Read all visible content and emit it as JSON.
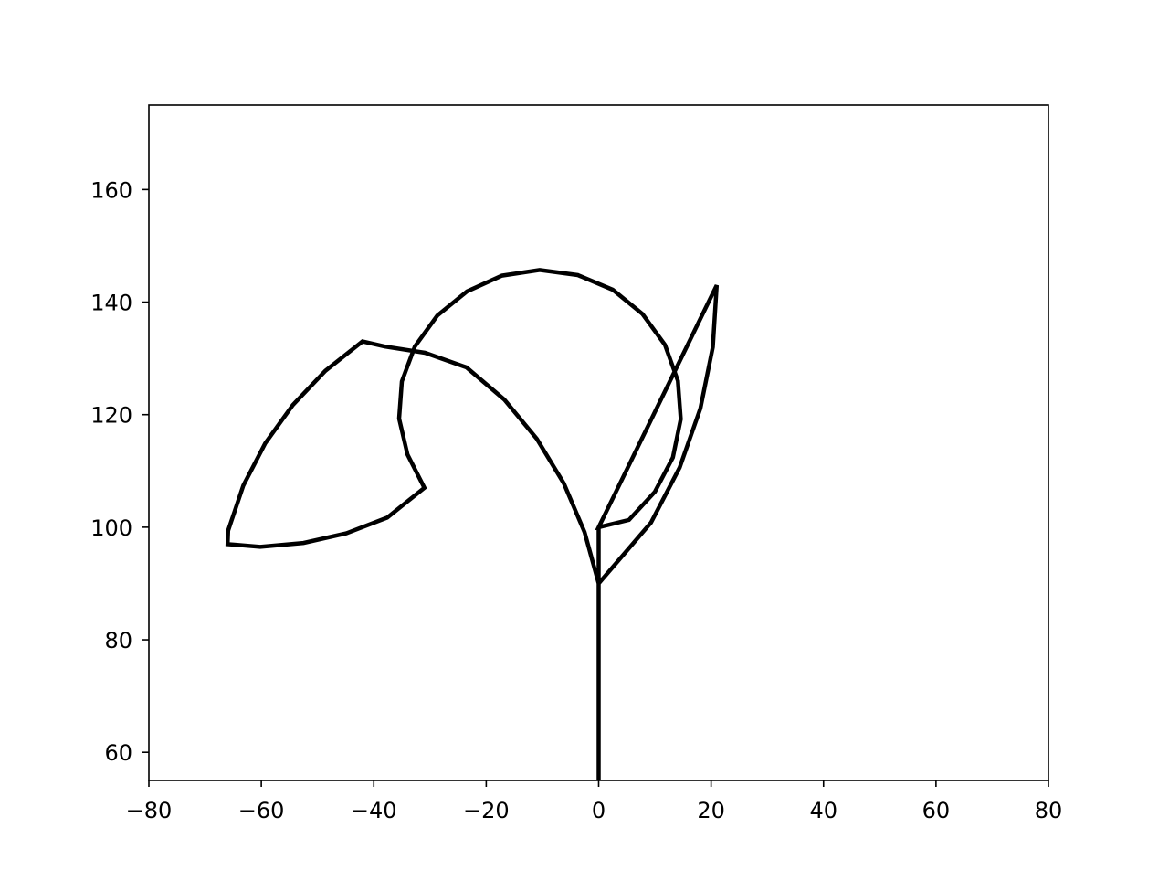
{
  "chart_data": {
    "type": "line",
    "title": "",
    "xlabel": "",
    "ylabel": "",
    "xlim": [
      -80,
      80
    ],
    "ylim": [
      55,
      175
    ],
    "x_ticks": [
      -80,
      -60,
      -40,
      -20,
      0,
      20,
      40,
      60,
      80
    ],
    "x_tick_labels": [
      "−80",
      "−60",
      "−40",
      "−20",
      "0",
      "20",
      "40",
      "60",
      "80"
    ],
    "y_ticks": [
      60,
      80,
      100,
      120,
      140,
      160
    ],
    "y_tick_labels": [
      "60",
      "80",
      "100",
      "120",
      "140",
      "160"
    ],
    "grid": false,
    "legend": "none",
    "line_color": "#000000",
    "series": [
      {
        "values": [
          [
            0,
            55
          ],
          [
            0,
            90
          ],
          [
            -2.5,
            99.1
          ],
          [
            -6.2,
            107.8
          ],
          [
            -11.0,
            115.7
          ],
          [
            -16.8,
            122.7
          ],
          [
            -23.5,
            128.4
          ],
          [
            -30.9,
            131.0
          ],
          [
            -38.0,
            132.1
          ],
          [
            -42.0,
            133.0
          ],
          [
            -48.6,
            127.8
          ],
          [
            -54.4,
            121.7
          ],
          [
            -59.3,
            114.9
          ],
          [
            -63.2,
            107.4
          ],
          [
            -65.9,
            99.4
          ],
          [
            -66.0,
            97.0
          ],
          [
            -60.2,
            96.5
          ],
          [
            -52.5,
            97.2
          ],
          [
            -44.9,
            98.9
          ],
          [
            -37.6,
            101.7
          ],
          [
            -31.0,
            107.0
          ],
          [
            -34.0,
            112.9
          ],
          [
            -35.5,
            119.3
          ],
          [
            -35.0,
            125.9
          ],
          [
            -32.7,
            132.1
          ],
          [
            -28.7,
            137.6
          ],
          [
            -23.4,
            141.9
          ],
          [
            -17.2,
            144.7
          ],
          [
            -10.5,
            145.7
          ],
          [
            -3.7,
            144.8
          ],
          [
            2.5,
            142.2
          ],
          [
            7.8,
            137.9
          ],
          [
            11.8,
            132.4
          ],
          [
            14.1,
            126.0
          ],
          [
            14.6,
            119.2
          ],
          [
            13.2,
            112.4
          ],
          [
            10.0,
            106.3
          ],
          [
            5.4,
            101.3
          ],
          [
            0,
            100
          ],
          [
            21.0,
            143.0
          ],
          [
            20.3,
            132.0
          ],
          [
            18.1,
            121.1
          ],
          [
            14.4,
            110.6
          ],
          [
            9.3,
            100.8
          ],
          [
            0,
            90
          ],
          [
            0,
            100
          ],
          [
            0,
            55
          ]
        ]
      }
    ]
  }
}
